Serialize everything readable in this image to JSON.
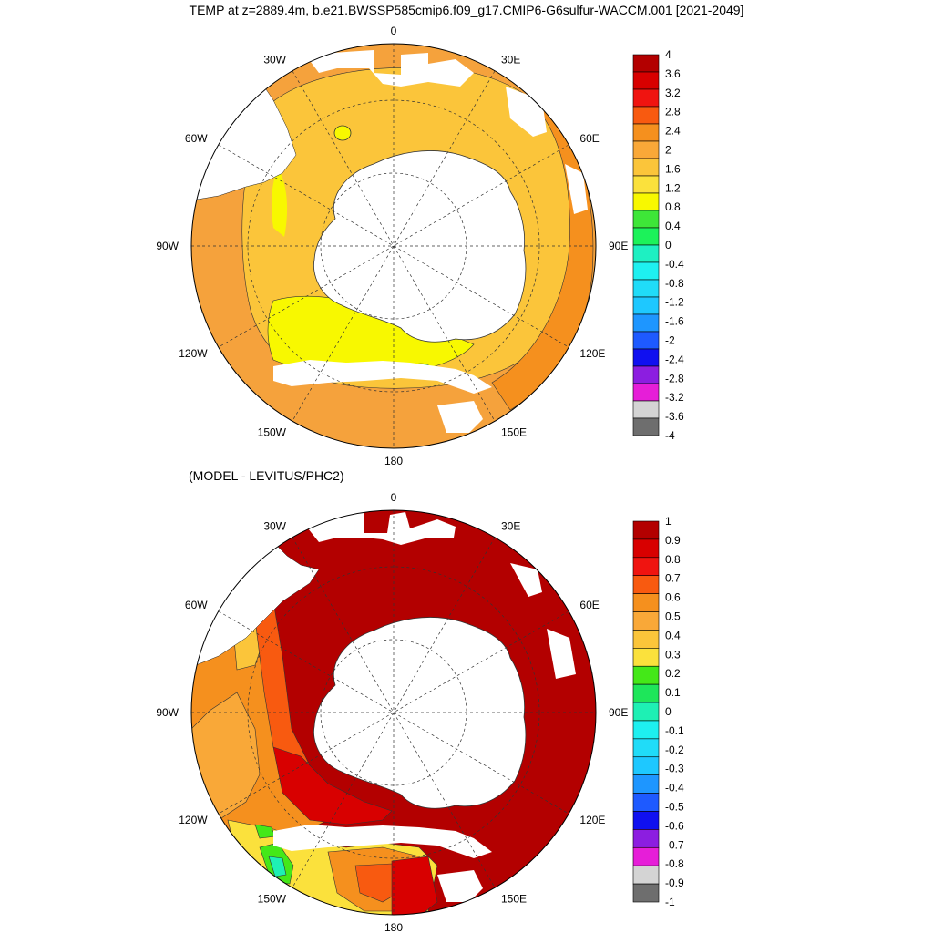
{
  "page": {
    "title": "TEMP at z=2889.4m, b.e21.BWSSP585cmip6.f09_g17.CMIP6-G6sulfur-WACCM.001 [2021-2049]",
    "subtitle": "(MODEL - LEVITUS/PHC2)"
  },
  "maps": [
    {
      "id": "top",
      "lon_labels": [
        {
          "lon": 0,
          "text": "0"
        },
        {
          "lon": 30,
          "text": "30E"
        },
        {
          "lon": 60,
          "text": "60E"
        },
        {
          "lon": 90,
          "text": "90E"
        },
        {
          "lon": 120,
          "text": "120E"
        },
        {
          "lon": 150,
          "text": "150E"
        },
        {
          "lon": 180,
          "text": "180"
        },
        {
          "lon": -150,
          "text": "150W"
        },
        {
          "lon": -120,
          "text": "120W"
        },
        {
          "lon": -90,
          "text": "90W"
        },
        {
          "lon": -60,
          "text": "60W"
        },
        {
          "lon": -30,
          "text": "30W"
        }
      ],
      "colorbar": {
        "labels": [
          "4",
          "3.6",
          "3.2",
          "2.8",
          "2.4",
          "2",
          "1.6",
          "1.2",
          "0.8",
          "0.4",
          "0",
          "-0.4",
          "-0.8",
          "-1.2",
          "-1.6",
          "-2",
          "-2.4",
          "-2.8",
          "-3.2",
          "-3.6",
          "-4"
        ],
        "colors": [
          "#b30000",
          "#d80000",
          "#f01410",
          "#f85a10",
          "#f5901e",
          "#f9a838",
          "#fbc53a",
          "#fbe13c",
          "#f8f800",
          "#3ee638",
          "#1cf25a",
          "#1ef0c2",
          "#1ef0f0",
          "#20dcf8",
          "#1ec8ff",
          "#1e96ff",
          "#1e5aff",
          "#1010f0",
          "#8c1ee0",
          "#e61ed8",
          "#d4d4d4",
          "#6e6e6e"
        ]
      }
    },
    {
      "id": "bottom",
      "lon_labels": [
        {
          "lon": 0,
          "text": "0"
        },
        {
          "lon": 30,
          "text": "30E"
        },
        {
          "lon": 60,
          "text": "60E"
        },
        {
          "lon": 90,
          "text": "90E"
        },
        {
          "lon": 120,
          "text": "120E"
        },
        {
          "lon": 150,
          "text": "150E"
        },
        {
          "lon": 180,
          "text": "180"
        },
        {
          "lon": -150,
          "text": "150W"
        },
        {
          "lon": -120,
          "text": "120W"
        },
        {
          "lon": -90,
          "text": "90W"
        },
        {
          "lon": -60,
          "text": "60W"
        },
        {
          "lon": -30,
          "text": "30W"
        }
      ],
      "colorbar": {
        "labels": [
          "1",
          "0.9",
          "0.8",
          "0.7",
          "0.6",
          "0.5",
          "0.4",
          "0.3",
          "0.2",
          "0.1",
          "0",
          "-0.1",
          "-0.2",
          "-0.3",
          "-0.4",
          "-0.5",
          "-0.6",
          "-0.7",
          "-0.8",
          "-0.9",
          "-1"
        ],
        "colors": [
          "#b30000",
          "#d80000",
          "#f01410",
          "#f85a10",
          "#f5901e",
          "#f9a838",
          "#fbc53a",
          "#fbe13c",
          "#44e818",
          "#1ee65a",
          "#1ef0b4",
          "#1ef0f0",
          "#20dcf8",
          "#1ec8ff",
          "#1e96ff",
          "#1e5aff",
          "#1010f0",
          "#8c1ee0",
          "#e61ed8",
          "#d4d4d4",
          "#6e6e6e"
        ]
      }
    }
  ]
}
